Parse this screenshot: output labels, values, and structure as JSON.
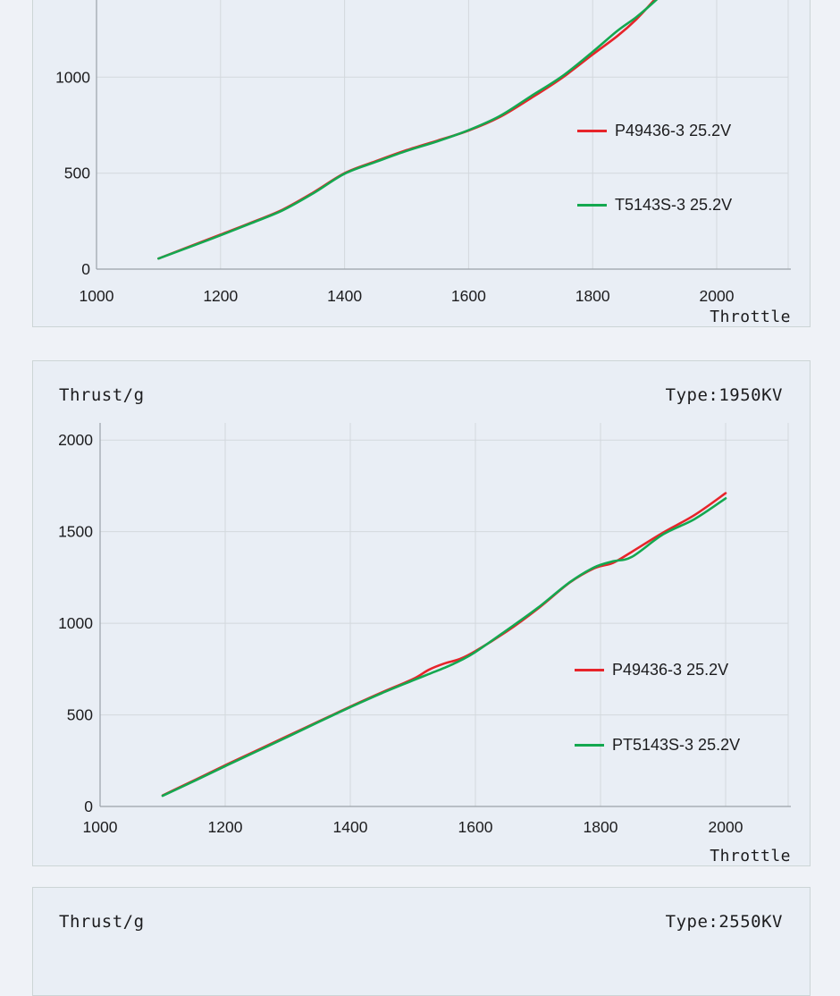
{
  "page_bg": "#eff2f7",
  "card_bg": "#e9eef5",
  "card_border": "#ccd5d6",
  "grid_color": "#d3d8dd",
  "axis_color": "#9aa1a9",
  "text_color": "#1c1c1e",
  "chart_data": [
    {
      "type": "line",
      "title": "",
      "type_label": "",
      "xlabel": "Throttle",
      "x_ticks": [
        1000,
        1200,
        1400,
        1600,
        1800,
        2000
      ],
      "y_ticks": [
        0,
        500,
        1000
      ],
      "xlim": [
        1000,
        2115
      ],
      "ylim_visible": [
        0,
        1400
      ],
      "grid": true,
      "legend_position": "right-middle",
      "legend": [
        {
          "label": "P49436-3 25.2V",
          "color": "#e7242a"
        },
        {
          "label": "T5143S-3 25.2V",
          "color": "#14a850"
        }
      ],
      "series": [
        {
          "name": "P49436-3 25.2V",
          "color": "#e7242a",
          "points": [
            [
              1100,
              55
            ],
            [
              1150,
              118
            ],
            [
              1200,
              180
            ],
            [
              1250,
              243
            ],
            [
              1300,
              310
            ],
            [
              1350,
              400
            ],
            [
              1400,
              500
            ],
            [
              1450,
              562
            ],
            [
              1500,
              620
            ],
            [
              1550,
              670
            ],
            [
              1600,
              722
            ],
            [
              1650,
              792
            ],
            [
              1700,
              890
            ],
            [
              1750,
              995
            ],
            [
              1800,
              1118
            ],
            [
              1840,
              1215
            ],
            [
              1870,
              1300
            ],
            [
              1900,
              1405
            ],
            [
              1925,
              1500
            ]
          ]
        },
        {
          "name": "T5143S-3 25.2V",
          "color": "#14a850",
          "points": [
            [
              1100,
              55
            ],
            [
              1150,
              115
            ],
            [
              1200,
              176
            ],
            [
              1250,
              240
            ],
            [
              1300,
              306
            ],
            [
              1350,
              396
            ],
            [
              1400,
              497
            ],
            [
              1450,
              558
            ],
            [
              1500,
              616
            ],
            [
              1550,
              666
            ],
            [
              1600,
              724
            ],
            [
              1650,
              797
            ],
            [
              1700,
              900
            ],
            [
              1750,
              1003
            ],
            [
              1800,
              1132
            ],
            [
              1840,
              1242
            ],
            [
              1870,
              1312
            ],
            [
              1900,
              1395
            ],
            [
              1925,
              1472
            ]
          ]
        }
      ]
    },
    {
      "type": "line",
      "title": "Thrust/g",
      "type_label": "Type:1950KV",
      "xlabel": "Throttle",
      "x_ticks": [
        1000,
        1200,
        1400,
        1600,
        1800,
        2000
      ],
      "y_ticks": [
        0,
        500,
        1000,
        1500,
        2000
      ],
      "xlim": [
        1000,
        2115
      ],
      "ylim": [
        0,
        2095
      ],
      "grid": true,
      "legend_position": "right-middle",
      "legend": [
        {
          "label": "P49436-3 25.2V",
          "color": "#e7242a"
        },
        {
          "label": "PT5143S-3 25.2V",
          "color": "#14a850"
        }
      ],
      "series": [
        {
          "name": "P49436-3 25.2V",
          "color": "#e7242a",
          "points": [
            [
              1100,
              60
            ],
            [
              1150,
              142
            ],
            [
              1200,
              225
            ],
            [
              1250,
              305
            ],
            [
              1300,
              385
            ],
            [
              1350,
              465
            ],
            [
              1400,
              545
            ],
            [
              1450,
              622
            ],
            [
              1500,
              695
            ],
            [
              1525,
              745
            ],
            [
              1550,
              780
            ],
            [
              1575,
              805
            ],
            [
              1600,
              848
            ],
            [
              1650,
              955
            ],
            [
              1700,
              1080
            ],
            [
              1750,
              1220
            ],
            [
              1790,
              1300
            ],
            [
              1820,
              1330
            ],
            [
              1850,
              1390
            ],
            [
              1900,
              1495
            ],
            [
              1950,
              1590
            ],
            [
              2000,
              1710
            ]
          ]
        },
        {
          "name": "PT5143S-3 25.2V",
          "color": "#14a850",
          "points": [
            [
              1100,
              58
            ],
            [
              1150,
              138
            ],
            [
              1200,
              220
            ],
            [
              1250,
              300
            ],
            [
              1300,
              380
            ],
            [
              1350,
              462
            ],
            [
              1400,
              542
            ],
            [
              1450,
              618
            ],
            [
              1500,
              688
            ],
            [
              1525,
              722
            ],
            [
              1550,
              756
            ],
            [
              1575,
              795
            ],
            [
              1600,
              843
            ],
            [
              1650,
              962
            ],
            [
              1700,
              1085
            ],
            [
              1750,
              1222
            ],
            [
              1790,
              1305
            ],
            [
              1820,
              1338
            ],
            [
              1850,
              1362
            ],
            [
              1900,
              1485
            ],
            [
              1950,
              1568
            ],
            [
              2000,
              1682
            ]
          ]
        }
      ]
    },
    {
      "type": "line",
      "title": "Thrust/g",
      "type_label": "Type:2550KV",
      "xlabel": "",
      "x_ticks": [],
      "y_ticks": [],
      "legend": [],
      "series": []
    }
  ]
}
